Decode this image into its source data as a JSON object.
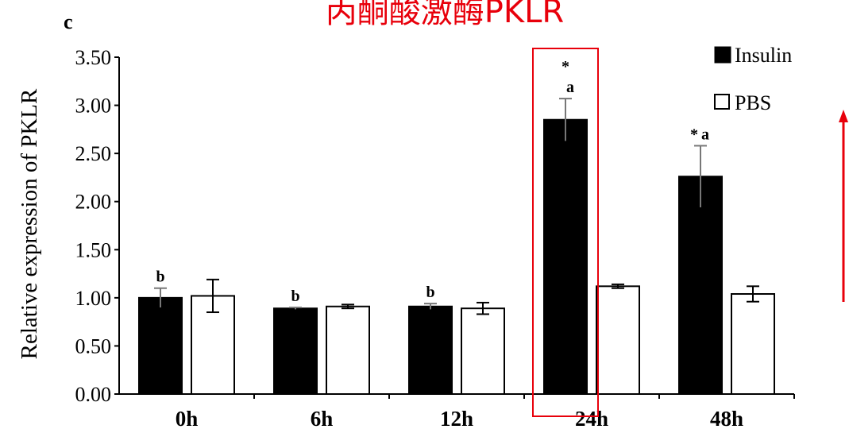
{
  "panel_label": "c",
  "annotation_title": "丙酮酸激酶PKLR",
  "colors": {
    "insulin": "#000000",
    "pbs": "#ffffff",
    "annotation": "#e8000b",
    "axis": "#000000"
  },
  "chart_data": {
    "type": "bar",
    "categories": [
      "0h",
      "6h",
      "12h",
      "24h",
      "48h"
    ],
    "ylabel": "Relative expression of PKLR",
    "xlabel": "",
    "ylim": [
      0,
      3.5
    ],
    "yticks": [
      "0.00",
      "0.50",
      "1.00",
      "1.50",
      "2.00",
      "2.50",
      "3.00",
      "3.50"
    ],
    "legend_position": "top-right",
    "series": [
      {
        "name": "Insulin",
        "values": [
          1.0,
          0.89,
          0.91,
          2.85,
          2.26
        ],
        "errors": [
          0.1,
          0.01,
          0.03,
          0.22,
          0.32
        ],
        "labels": [
          "b",
          "b",
          "b",
          "a",
          "a"
        ],
        "markers": [
          "",
          "",
          "",
          "*",
          "*"
        ]
      },
      {
        "name": "PBS",
        "values": [
          1.02,
          0.91,
          0.89,
          1.12,
          1.04
        ],
        "errors": [
          0.17,
          0.02,
          0.06,
          0.02,
          0.08
        ]
      }
    ],
    "highlight_category": "24h",
    "trend_arrow": "up"
  }
}
